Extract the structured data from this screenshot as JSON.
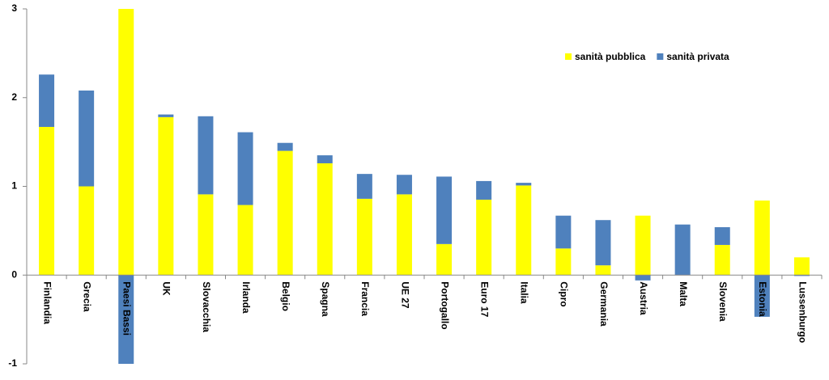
{
  "chart_data": {
    "type": "stacked_bar",
    "categories": [
      "Finlandia",
      "Grecia",
      "Paesi Bassi",
      "UK",
      "Slovacchia",
      "Irlanda",
      "Belgio",
      "Spagna",
      "Francia",
      "UE 27",
      "Portogallo",
      "Euro 17",
      "Italia",
      "Cipro",
      "Germania",
      "Austria",
      "Malta",
      "Slovenia",
      "Estonia",
      "Lussenburgo"
    ],
    "series": [
      {
        "name": "sanità pubblica",
        "color": "#ffff00",
        "values": [
          1.67,
          1.0,
          3.0,
          1.78,
          0.91,
          0.79,
          1.4,
          1.26,
          0.86,
          0.91,
          0.35,
          0.85,
          1.01,
          0.3,
          0.11,
          0.67,
          0,
          0.34,
          0.84,
          0.2
        ]
      },
      {
        "name": "sanità privata",
        "color": "#4f81bd",
        "values": [
          0.59,
          1.08,
          -1.0,
          0.03,
          0.88,
          0.82,
          0.09,
          0.09,
          0.28,
          0.22,
          0.76,
          0.21,
          0.03,
          0.37,
          0.51,
          -0.06,
          0.57,
          0.2,
          -0.47,
          -0.01
        ]
      }
    ],
    "ylim": [
      -1,
      3
    ],
    "yticks": [
      -1,
      0,
      1,
      2,
      3
    ],
    "legend": "top-right"
  }
}
